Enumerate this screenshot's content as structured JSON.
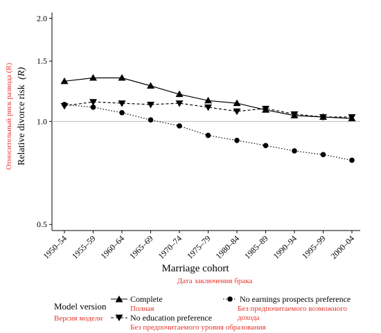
{
  "chart_data": {
    "type": "line",
    "scale_y": "log",
    "ylim": [
      0.48,
      2.08
    ],
    "yticks": [
      {
        "value": 0.5,
        "label": "0.5"
      },
      {
        "value": 1.0,
        "label": "1.0"
      },
      {
        "value": 1.5,
        "label": "1.5"
      },
      {
        "value": 2.0,
        "label": "2.0"
      }
    ],
    "reference_line": 1.0,
    "categories": [
      "1950–54",
      "1955–59",
      "1960–64",
      "1965–69",
      "1970–74",
      "1975–79",
      "1980–84",
      "1985–89",
      "1990–94",
      "1995–99",
      "2000–04"
    ],
    "xlabel": "Marriage cohort",
    "xlabel_translation": "Дата заключения брака",
    "ylabel": "Relative divorce risk",
    "ylabel_var": "(R)",
    "ylabel_translation": "Относительный риск развода (R)",
    "legend": {
      "title": "Model version",
      "title_translation": "Версия модели",
      "placement": "bottom"
    },
    "series": [
      {
        "name": "Complete",
        "translation": "Полная",
        "marker": "triangle-up",
        "line": "solid",
        "values": [
          1.31,
          1.34,
          1.34,
          1.27,
          1.2,
          1.15,
          1.13,
          1.08,
          1.04,
          1.03,
          1.02
        ]
      },
      {
        "name": "No education preference",
        "translation": "Без предпочитаемого уровня образования",
        "marker": "triangle-down",
        "line": "dashed",
        "values": [
          1.11,
          1.14,
          1.13,
          1.12,
          1.13,
          1.1,
          1.07,
          1.09,
          1.05,
          1.03,
          1.03
        ]
      },
      {
        "name": "No earnings prospects preference",
        "translation": "Без предпочитаемого возможного дохода",
        "marker": "circle",
        "line": "dotted",
        "values": [
          1.12,
          1.1,
          1.06,
          1.01,
          0.97,
          0.91,
          0.88,
          0.85,
          0.82,
          0.8,
          0.77
        ]
      }
    ],
    "colors": {
      "ink": "#000000",
      "translation": "#e8332c",
      "reference_line": "#bdbdbd"
    }
  }
}
